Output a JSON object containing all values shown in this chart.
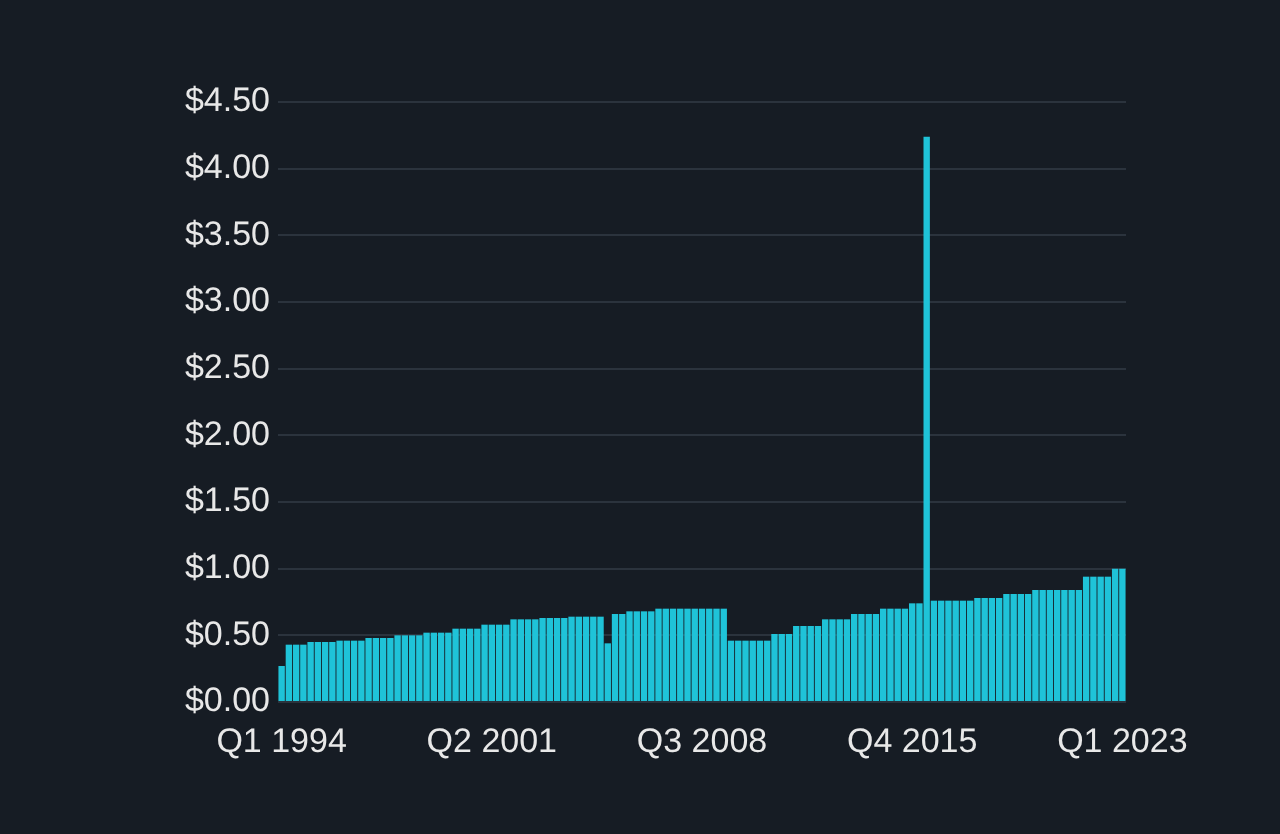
{
  "chart_data": {
    "type": "bar",
    "categories": [
      "Q1 1994",
      null,
      null,
      null,
      null,
      null,
      null,
      null,
      null,
      null,
      null,
      null,
      null,
      null,
      null,
      null,
      null,
      null,
      null,
      null,
      null,
      null,
      null,
      null,
      null,
      null,
      null,
      null,
      null,
      "Q2 2001",
      null,
      null,
      null,
      null,
      null,
      null,
      null,
      null,
      null,
      null,
      null,
      null,
      null,
      null,
      null,
      null,
      null,
      null,
      null,
      null,
      null,
      null,
      null,
      null,
      null,
      null,
      null,
      null,
      "Q3 2008",
      null,
      null,
      null,
      null,
      null,
      null,
      null,
      null,
      null,
      null,
      null,
      null,
      null,
      null,
      null,
      null,
      null,
      null,
      null,
      null,
      null,
      null,
      null,
      null,
      null,
      null,
      null,
      null,
      "Q4 2015",
      null,
      null,
      null,
      null,
      null,
      null,
      null,
      null,
      null,
      null,
      null,
      null,
      null,
      null,
      null,
      null,
      null,
      null,
      null,
      null,
      null,
      null,
      null,
      null,
      null,
      null,
      null,
      null,
      "Q1 2023"
    ],
    "values": [
      0.27,
      0.43,
      0.43,
      0.43,
      0.45,
      0.45,
      0.45,
      0.45,
      0.46,
      0.46,
      0.46,
      0.46,
      0.48,
      0.48,
      0.48,
      0.48,
      0.5,
      0.5,
      0.5,
      0.5,
      0.52,
      0.52,
      0.52,
      0.52,
      0.55,
      0.55,
      0.55,
      0.55,
      0.58,
      0.58,
      0.58,
      0.58,
      0.62,
      0.62,
      0.62,
      0.62,
      0.63,
      0.63,
      0.63,
      0.63,
      0.64,
      0.64,
      0.64,
      0.64,
      0.64,
      0.44,
      0.66,
      0.66,
      0.68,
      0.68,
      0.68,
      0.68,
      0.7,
      0.7,
      0.7,
      0.7,
      0.7,
      0.7,
      0.7,
      0.7,
      0.7,
      0.7,
      0.46,
      0.46,
      0.46,
      0.46,
      0.46,
      0.46,
      0.51,
      0.51,
      0.51,
      0.57,
      0.57,
      0.57,
      0.57,
      0.62,
      0.62,
      0.62,
      0.62,
      0.66,
      0.66,
      0.66,
      0.66,
      0.7,
      0.7,
      0.7,
      0.7,
      0.74,
      0.74,
      4.24,
      0.76,
      0.76,
      0.76,
      0.76,
      0.76,
      0.76,
      0.78,
      0.78,
      0.78,
      0.78,
      0.81,
      0.81,
      0.81,
      0.81,
      0.84,
      0.84,
      0.84,
      0.84,
      0.84,
      0.84,
      0.84,
      0.94,
      0.94,
      0.94,
      0.94,
      1.0,
      1.0
    ],
    "color": "#1fc3d8",
    "ylim": [
      0,
      4.5
    ],
    "yticks": [
      {
        "value": 0,
        "label": "$0.00"
      },
      {
        "value": 0.5,
        "label": "$0.50"
      },
      {
        "value": 1,
        "label": "$1.00"
      },
      {
        "value": 1.5,
        "label": "$1.50"
      },
      {
        "value": 2,
        "label": "$2.00"
      },
      {
        "value": 2.5,
        "label": "$2.50"
      },
      {
        "value": 3,
        "label": "$3.00"
      },
      {
        "value": 3.5,
        "label": "$3.50"
      },
      {
        "value": 4,
        "label": "$4.00"
      },
      {
        "value": 4.5,
        "label": "$4.50"
      }
    ],
    "grid": "y",
    "legend": false
  }
}
